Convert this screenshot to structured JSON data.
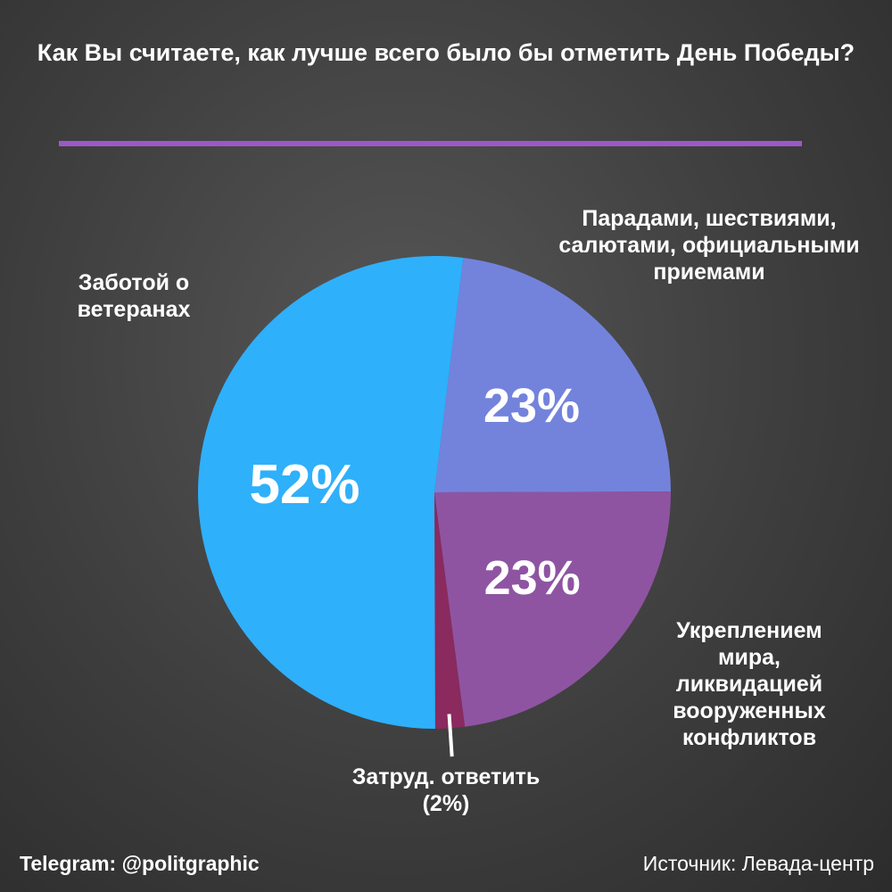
{
  "chart_data": {
    "type": "pie",
    "title": "Как Вы считаете, как лучше всего было бы отметить День Победы?",
    "slices": [
      {
        "label": "Парадами, шествиями, салютами, официальными приемами",
        "value": 23,
        "value_label": "23%",
        "color": "#7383dc"
      },
      {
        "label": "Укреплением мира, ликвидацией вооруженных конфликтов",
        "value": 23,
        "value_label": "23%",
        "color": "#8e54a2"
      },
      {
        "label": "Затруд. ответить (2%)",
        "value": 2,
        "value_label": "",
        "color": "#8a2a5e"
      },
      {
        "label": "Заботой о ветеранах",
        "value": 52,
        "value_label": "52%",
        "color": "#2fb0fb"
      }
    ]
  },
  "footer": {
    "telegram": "Telegram: @politgraphic",
    "source": "Источник: Левада-центр"
  },
  "colors": {
    "title_rule": "#9b59c7",
    "background": "#3e3e3e"
  }
}
